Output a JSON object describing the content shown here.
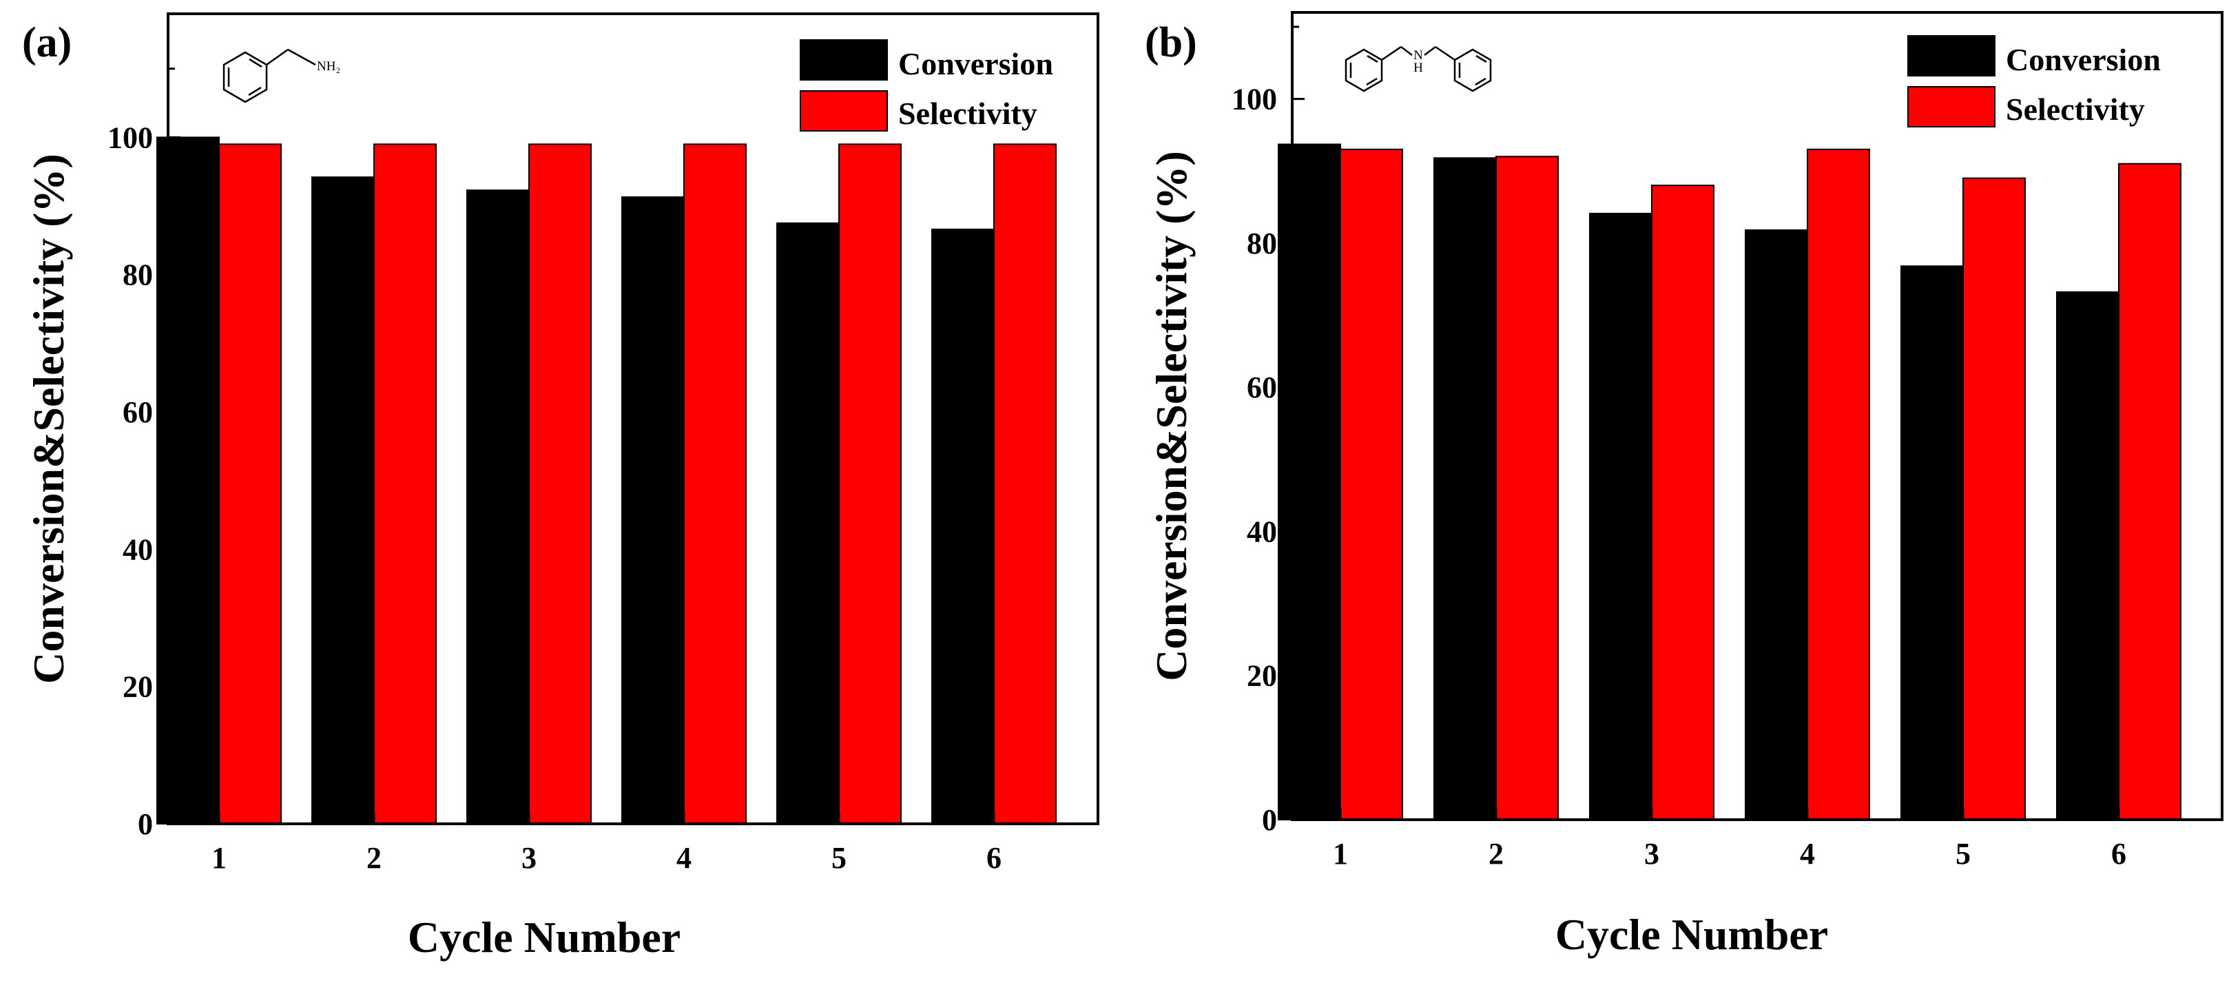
{
  "figure": {
    "legend": {
      "conversion_label": "Conversion",
      "selectivity_label": "Selectivity"
    },
    "colors": {
      "conversion": "#000000",
      "selectivity": "#ff0000"
    }
  },
  "panels": [
    {
      "label": "(a)",
      "molecule": {
        "substituent": "NH₂",
        "name_icon": "benzylamine-structure"
      }
    },
    {
      "label": "(b)",
      "molecule": {
        "substituent": "H",
        "name_icon": "dibenzylamine-structure"
      }
    }
  ],
  "chart_data": [
    {
      "type": "bar",
      "title": "(a)",
      "categories": [
        "1",
        "2",
        "3",
        "4",
        "5",
        "6"
      ],
      "series": [
        {
          "name": "Conversion",
          "values": [
            100,
            94.2,
            92.3,
            91.3,
            87.5,
            86.6
          ]
        },
        {
          "name": "Selectivity",
          "values": [
            99,
            99,
            99,
            99,
            99,
            99
          ]
        }
      ],
      "xlabel": "Cycle Number",
      "ylabel": "Conversion&Selectivity (%)",
      "ylim": [
        0,
        118
      ],
      "yticks": [
        0,
        20,
        40,
        60,
        80,
        100
      ],
      "legend": "top-right",
      "grid": false
    },
    {
      "type": "bar",
      "title": "(b)",
      "categories": [
        "1",
        "2",
        "3",
        "4",
        "5",
        "6"
      ],
      "series": [
        {
          "name": "Conversion",
          "values": [
            93.7,
            91.8,
            84.1,
            81.8,
            76.8,
            73.2
          ]
        },
        {
          "name": "Selectivity",
          "values": [
            93,
            92,
            88,
            93,
            89,
            91
          ]
        }
      ],
      "xlabel": "Cycle Number",
      "ylabel": "Conversion&Selectivity (%)",
      "ylim": [
        0,
        112
      ],
      "yticks": [
        0,
        20,
        40,
        60,
        80,
        100
      ],
      "legend": "top-right",
      "grid": false
    }
  ]
}
